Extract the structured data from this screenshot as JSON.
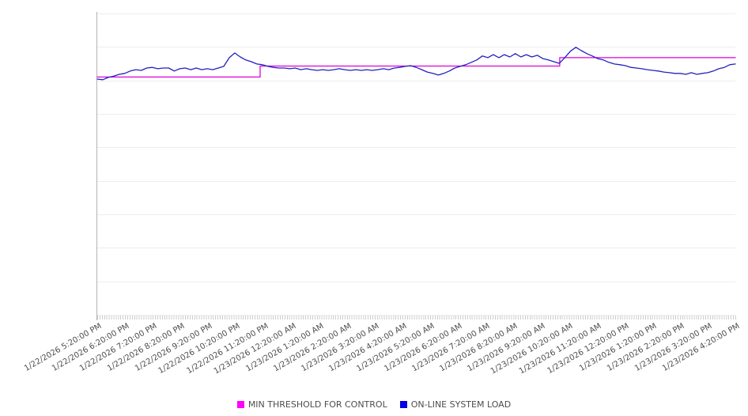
{
  "chart_data": {
    "type": "line",
    "title": "",
    "legend_position": "bottom",
    "colors": {
      "background": "#ffffff",
      "gridline": "#ededed",
      "axis_line": "#b3b3b3",
      "minor_tick": "#cccccc",
      "label_text": "#4d4d4d",
      "legend_text": "#4d4d4d"
    },
    "x_axis": {
      "span_hours": 23,
      "minor_tick_interval_minutes": 5,
      "labels": [
        "1/22/2026 5:20:00 PM",
        "1/22/2026 6:20:00 PM",
        "1/22/2026 7:20:00 PM",
        "1/22/2026 8:20:00 PM",
        "1/22/2026 9:20:00 PM",
        "1/22/2026 10:20:00 PM",
        "1/22/2026 11:20:00 PM",
        "1/23/2026 12:20:00 AM",
        "1/23/2026 1:20:00 AM",
        "1/23/2026 2:20:00 AM",
        "1/23/2026 3:20:00 AM",
        "1/23/2026 4:20:00 AM",
        "1/23/2026 5:20:00 AM",
        "1/23/2026 6:20:00 AM",
        "1/23/2026 7:20:00 AM",
        "1/23/2026 8:20:00 AM",
        "1/23/2026 9:20:00 AM",
        "1/23/2026 10:20:00 AM",
        "1/23/2026 11:20:00 AM",
        "1/23/2026 12:20:00 PM",
        "1/23/2026 1:20:00 PM",
        "1/23/2026 2:20:00 PM",
        "1/23/2026 3:20:00 PM",
        "1/23/2026 4:20:00 PM"
      ]
    },
    "y_axis": {
      "labels_visible": false,
      "range": [
        0,
        9
      ],
      "gridline_step": 1,
      "note": "no numeric labels shown; values expressed in gridline units"
    },
    "series": [
      {
        "name": "MIN THRESHOLD FOR CONTROL",
        "color": "#DD00DD",
        "legend_color": "#FF00FF",
        "type": "step",
        "points": [
          [
            0,
            7.1
          ],
          [
            5.87,
            7.1
          ],
          [
            5.87,
            7.43
          ],
          [
            16.67,
            7.43
          ],
          [
            16.67,
            7.68
          ],
          [
            23,
            7.68
          ]
        ]
      },
      {
        "name": "ON-LINE SYSTEM LOAD",
        "color": "#2222BE",
        "legend_color": "#0000E6",
        "type": "line",
        "x_range_hours": [
          0,
          23
        ],
        "values": [
          7.04,
          7.02,
          7.09,
          7.13,
          7.18,
          7.21,
          7.28,
          7.32,
          7.3,
          7.37,
          7.39,
          7.35,
          7.37,
          7.37,
          7.28,
          7.35,
          7.37,
          7.32,
          7.37,
          7.32,
          7.35,
          7.32,
          7.37,
          7.42,
          7.68,
          7.82,
          7.7,
          7.61,
          7.56,
          7.49,
          7.47,
          7.42,
          7.39,
          7.37,
          7.37,
          7.35,
          7.37,
          7.32,
          7.35,
          7.32,
          7.3,
          7.32,
          7.3,
          7.32,
          7.35,
          7.32,
          7.3,
          7.32,
          7.3,
          7.32,
          7.3,
          7.32,
          7.35,
          7.32,
          7.37,
          7.39,
          7.42,
          7.44,
          7.39,
          7.32,
          7.25,
          7.21,
          7.16,
          7.21,
          7.28,
          7.37,
          7.42,
          7.47,
          7.54,
          7.61,
          7.73,
          7.68,
          7.77,
          7.68,
          7.77,
          7.7,
          7.8,
          7.7,
          7.77,
          7.7,
          7.75,
          7.65,
          7.61,
          7.56,
          7.51,
          7.68,
          7.87,
          7.99,
          7.89,
          7.8,
          7.73,
          7.65,
          7.61,
          7.54,
          7.49,
          7.47,
          7.44,
          7.39,
          7.37,
          7.35,
          7.32,
          7.3,
          7.28,
          7.25,
          7.23,
          7.21,
          7.21,
          7.18,
          7.23,
          7.18,
          7.21,
          7.23,
          7.28,
          7.35,
          7.39,
          7.47,
          7.49
        ]
      }
    ]
  }
}
